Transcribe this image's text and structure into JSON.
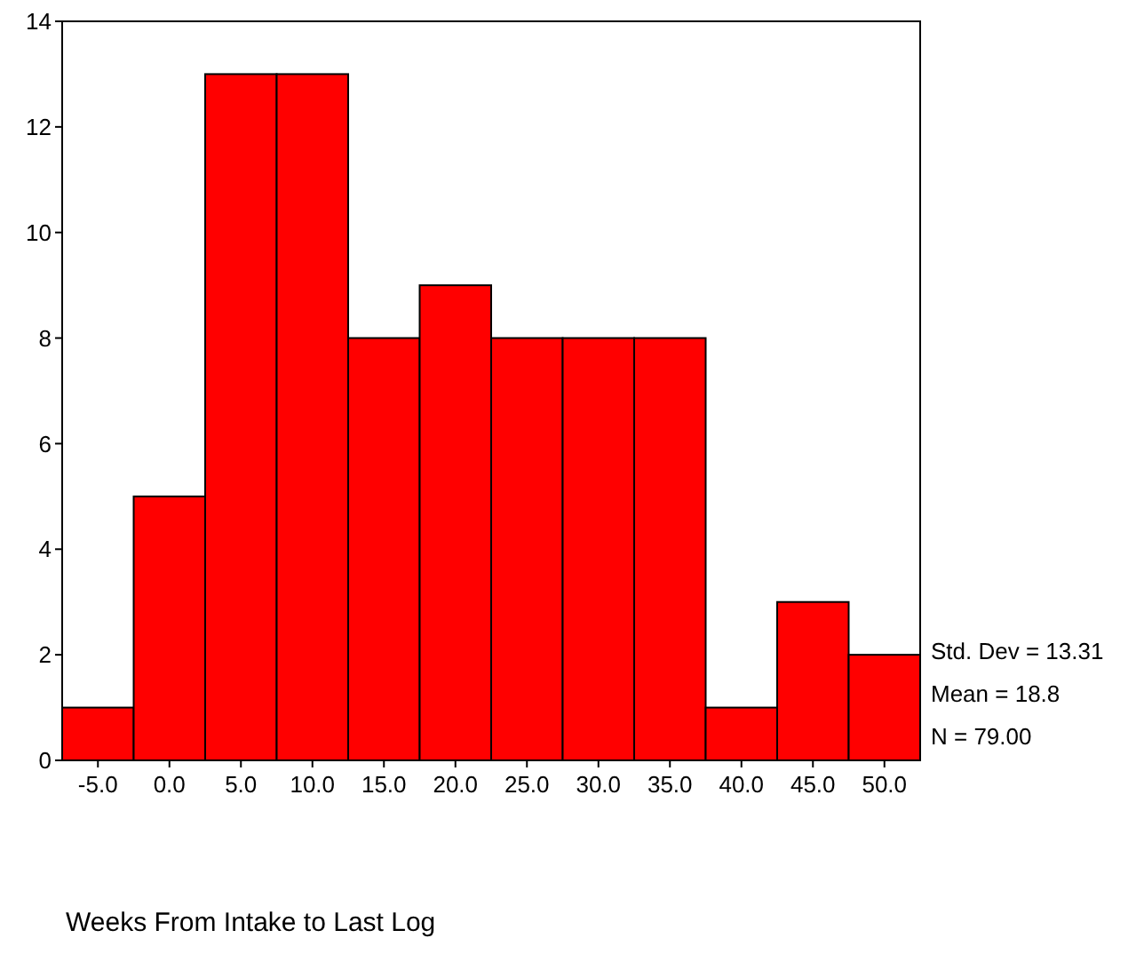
{
  "chart_data": {
    "type": "histogram",
    "xlabel": "Weeks From Intake to Last Log",
    "bins": [
      -7.5,
      -2.5,
      2.5,
      7.5,
      12.5,
      17.5,
      22.5,
      27.5,
      32.5,
      37.5,
      42.5,
      47.5,
      52.5
    ],
    "values": [
      1,
      5,
      13,
      13,
      8,
      9,
      8,
      8,
      8,
      1,
      3,
      2
    ],
    "color": "#ff0000",
    "xlim": [
      -7.5,
      52.5
    ],
    "xticks": [
      {
        "value": -5,
        "label": "-5.0"
      },
      {
        "value": 0,
        "label": "0.0"
      },
      {
        "value": 5,
        "label": "5.0"
      },
      {
        "value": 10,
        "label": "10.0"
      },
      {
        "value": 15,
        "label": "15.0"
      },
      {
        "value": 20,
        "label": "20.0"
      },
      {
        "value": 25,
        "label": "25.0"
      },
      {
        "value": 30,
        "label": "30.0"
      },
      {
        "value": 35,
        "label": "35.0"
      },
      {
        "value": 40,
        "label": "40.0"
      },
      {
        "value": 45,
        "label": "45.0"
      },
      {
        "value": 50,
        "label": "50.0"
      }
    ],
    "ylim": [
      0,
      14
    ],
    "yticks": [
      0,
      2,
      4,
      6,
      8,
      10,
      12,
      14
    ],
    "annotations": [
      "Std. Dev = 13.31",
      "Mean = 18.8",
      "N = 79.00"
    ]
  }
}
